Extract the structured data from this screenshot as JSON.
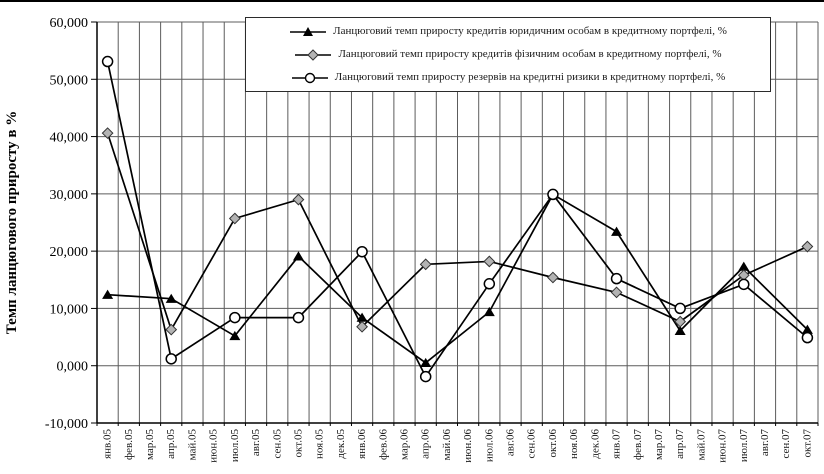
{
  "figure": {
    "y_axis_title": "Темп ланцюгового приросту в %"
  },
  "legend": {
    "items": [
      {
        "label": "Ланцюговий темп приросту кредитів юридичним особам в кредитному портфелі, %",
        "marker": "filled-black-triangle"
      },
      {
        "label": "Ланцюговий темп приросту кредитів фізичним особам в кредитному портфелі, %",
        "marker": "gray-diamond"
      },
      {
        "label": "Ланцюговий темп приросту резервів на кредитні ризики в кредитному портфелі, %",
        "marker": "white-circle"
      }
    ]
  },
  "chart_data": {
    "type": "line",
    "title": "",
    "xlabel": "",
    "ylabel": "Темп ланцюгового приросту в %",
    "ylim": [
      -10,
      60
    ],
    "yticks": [
      {
        "value": 60,
        "label": "60,000"
      },
      {
        "value": 50,
        "label": "50,000"
      },
      {
        "value": 40,
        "label": "40,000"
      },
      {
        "value": 30,
        "label": "30,000"
      },
      {
        "value": 20,
        "label": "20,000"
      },
      {
        "value": 10,
        "label": "10,000"
      },
      {
        "value": 0,
        "label": "0,000"
      },
      {
        "value": -10,
        "label": "-10,000"
      }
    ],
    "grid": "both",
    "legend_position": "top-inside",
    "categories": [
      "янв.05",
      "фев.05",
      "мар.05",
      "апр.05",
      "май.05",
      "июн.05",
      "июл.05",
      "авг.05",
      "сен.05",
      "окт.05",
      "ноя.05",
      "дек.05",
      "янв.06",
      "фев.06",
      "мар.06",
      "апр.06",
      "май.06",
      "июн.06",
      "июл.06",
      "авг.06",
      "сен.06",
      "окт.06",
      "ноя.06",
      "дек.06",
      "янв.07",
      "фев.07",
      "мар.07",
      "апр.07",
      "май.07",
      "июн.07",
      "июл.07",
      "авг.07",
      "сен.07",
      "окт.07"
    ],
    "series": [
      {
        "name": "Ланцюговий темп приросту кредитів юридичним особам в кредитному портфелі, %",
        "marker": "triangle",
        "line_color": "#000000",
        "marker_fill": "#000000",
        "marker_stroke": "#000000",
        "x_labels": [
          "янв.05",
          "апр.05",
          "июл.05",
          "окт.05",
          "янв.06",
          "апр.06",
          "июл.06",
          "окт.06",
          "янв.07",
          "апр.07",
          "июл.07",
          "окт.07"
        ],
        "x_indices": [
          0,
          3,
          6,
          9,
          12,
          15,
          18,
          21,
          24,
          27,
          30,
          33
        ],
        "values": [
          12.4,
          11.7,
          5.2,
          19.1,
          8.4,
          0.5,
          9.4,
          29.9,
          23.4,
          6.1,
          17.3,
          6.3
        ]
      },
      {
        "name": "Ланцюговий темп приросту кредитів фізичним особам в кредитному портфелі, %",
        "marker": "diamond",
        "line_color": "#000000",
        "marker_fill": "#b3b3b3",
        "marker_stroke": "#333333",
        "x_labels": [
          "янв.05",
          "апр.05",
          "июл.05",
          "окт.05",
          "янв.06",
          "апр.06",
          "июл.06",
          "окт.06",
          "янв.07",
          "апр.07",
          "июл.07",
          "окт.07"
        ],
        "x_indices": [
          0,
          3,
          6,
          9,
          12,
          15,
          18,
          21,
          24,
          27,
          30,
          33
        ],
        "values": [
          40.6,
          6.3,
          25.7,
          29.0,
          6.8,
          17.7,
          18.2,
          15.4,
          12.8,
          7.7,
          15.8,
          20.8
        ]
      },
      {
        "name": "Ланцюговий темп приросту резервів на кредитні ризики в кредитному портфелі, %",
        "marker": "circle",
        "line_color": "#000000",
        "marker_fill": "#ffffff",
        "marker_stroke": "#000000",
        "x_labels": [
          "янв.05",
          "апр.05",
          "июл.05",
          "окт.05",
          "янв.06",
          "апр.06",
          "июл.06",
          "окт.06",
          "янв.07",
          "апр.07",
          "июл.07",
          "окт.07"
        ],
        "x_indices": [
          0,
          3,
          6,
          9,
          12,
          15,
          18,
          21,
          24,
          27,
          30,
          33
        ],
        "values": [
          53.1,
          1.2,
          8.4,
          8.4,
          19.9,
          -1.9,
          14.3,
          29.9,
          15.2,
          10.0,
          14.2,
          4.9
        ]
      }
    ]
  }
}
